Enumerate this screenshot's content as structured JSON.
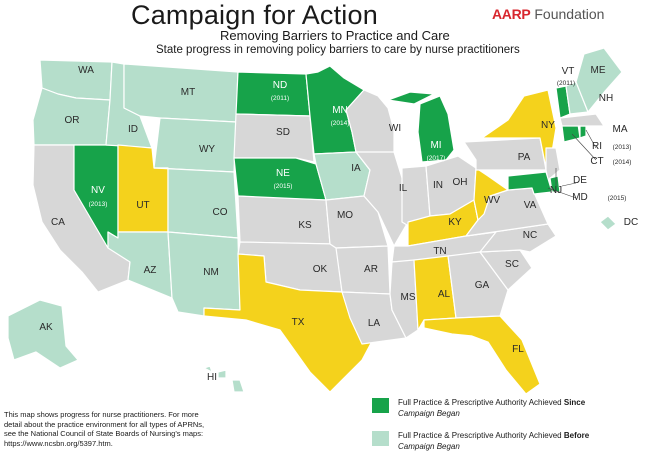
{
  "header": {
    "title": "Campaign for Action",
    "subtitle": "Removing Barriers to Practice and Care",
    "caption": "State progress in removing policy barriers to care by nurse practitioners",
    "brand_aarp": "AARP",
    "brand_foundation": "Foundation"
  },
  "colors": {
    "since": "#17a34a",
    "before": "#b5decb",
    "progress": "#f4d21c",
    "none": "#d7d7d7",
    "border": "#ffffff"
  },
  "states": [
    {
      "abbr": "WA",
      "year": "",
      "status": "before"
    },
    {
      "abbr": "OR",
      "year": "",
      "status": "before"
    },
    {
      "abbr": "CA",
      "year": "",
      "status": "none"
    },
    {
      "abbr": "NV",
      "year": "(2013)",
      "status": "since"
    },
    {
      "abbr": "ID",
      "year": "",
      "status": "before"
    },
    {
      "abbr": "MT",
      "year": "",
      "status": "before"
    },
    {
      "abbr": "WY",
      "year": "",
      "status": "before"
    },
    {
      "abbr": "UT",
      "year": "",
      "status": "progress"
    },
    {
      "abbr": "AZ",
      "year": "",
      "status": "before"
    },
    {
      "abbr": "CO",
      "year": "",
      "status": "before"
    },
    {
      "abbr": "NM",
      "year": "",
      "status": "before"
    },
    {
      "abbr": "ND",
      "year": "(2011)",
      "status": "since"
    },
    {
      "abbr": "SD",
      "year": "",
      "status": "none"
    },
    {
      "abbr": "NE",
      "year": "(2015)",
      "status": "since"
    },
    {
      "abbr": "KS",
      "year": "",
      "status": "none"
    },
    {
      "abbr": "OK",
      "year": "",
      "status": "none"
    },
    {
      "abbr": "TX",
      "year": "",
      "status": "progress"
    },
    {
      "abbr": "MN",
      "year": "(2014)",
      "status": "since"
    },
    {
      "abbr": "IA",
      "year": "",
      "status": "before"
    },
    {
      "abbr": "MO",
      "year": "",
      "status": "none"
    },
    {
      "abbr": "AR",
      "year": "",
      "status": "none"
    },
    {
      "abbr": "LA",
      "year": "",
      "status": "none"
    },
    {
      "abbr": "WI",
      "year": "",
      "status": "none"
    },
    {
      "abbr": "IL",
      "year": "",
      "status": "none"
    },
    {
      "abbr": "MI",
      "year": "(2017)",
      "status": "since"
    },
    {
      "abbr": "IN",
      "year": "",
      "status": "none"
    },
    {
      "abbr": "OH",
      "year": "",
      "status": "none"
    },
    {
      "abbr": "KY",
      "year": "",
      "status": "progress"
    },
    {
      "abbr": "TN",
      "year": "",
      "status": "none"
    },
    {
      "abbr": "MS",
      "year": "",
      "status": "none"
    },
    {
      "abbr": "AL",
      "year": "",
      "status": "progress"
    },
    {
      "abbr": "GA",
      "year": "",
      "status": "none"
    },
    {
      "abbr": "FL",
      "year": "",
      "status": "progress"
    },
    {
      "abbr": "SC",
      "year": "",
      "status": "none"
    },
    {
      "abbr": "NC",
      "year": "",
      "status": "none"
    },
    {
      "abbr": "VA",
      "year": "",
      "status": "none"
    },
    {
      "abbr": "WV",
      "year": "",
      "status": "progress"
    },
    {
      "abbr": "PA",
      "year": "",
      "status": "none"
    },
    {
      "abbr": "NY",
      "year": "",
      "status": "progress"
    },
    {
      "abbr": "NJ",
      "year": "",
      "status": "none"
    },
    {
      "abbr": "DE",
      "year": "",
      "status": "since"
    },
    {
      "abbr": "MD",
      "year": "(2015)",
      "status": "since"
    },
    {
      "abbr": "DC",
      "year": "",
      "status": "before"
    },
    {
      "abbr": "CT",
      "year": "(2014)",
      "status": "since"
    },
    {
      "abbr": "RI",
      "year": "(2013)",
      "status": "since"
    },
    {
      "abbr": "MA",
      "year": "",
      "status": "none"
    },
    {
      "abbr": "VT",
      "year": "(2011)",
      "status": "since"
    },
    {
      "abbr": "NH",
      "year": "",
      "status": "before"
    },
    {
      "abbr": "ME",
      "year": "",
      "status": "before"
    },
    {
      "abbr": "AK",
      "year": "",
      "status": "before"
    },
    {
      "abbr": "HI",
      "year": "",
      "status": "before"
    }
  ],
  "footnote": {
    "line1": "This map shows progress for nurse practitioners. For more",
    "line2": "detail about the practice environment for all types of APRNs,",
    "line3": "see the National Council of State Boards of Nursing's maps:",
    "line4": "https://www.ncsbn.org/5397.htm."
  },
  "legend": [
    {
      "status": "since",
      "prefix": "Full Practice & Prescriptive Authority Achieved",
      "emph": "Since",
      "suffix": "Campaign Began"
    },
    {
      "status": "before",
      "prefix": "Full Practice & Prescriptive Authority Achieved",
      "emph": "Before",
      "suffix": "Campaign Began"
    }
  ]
}
